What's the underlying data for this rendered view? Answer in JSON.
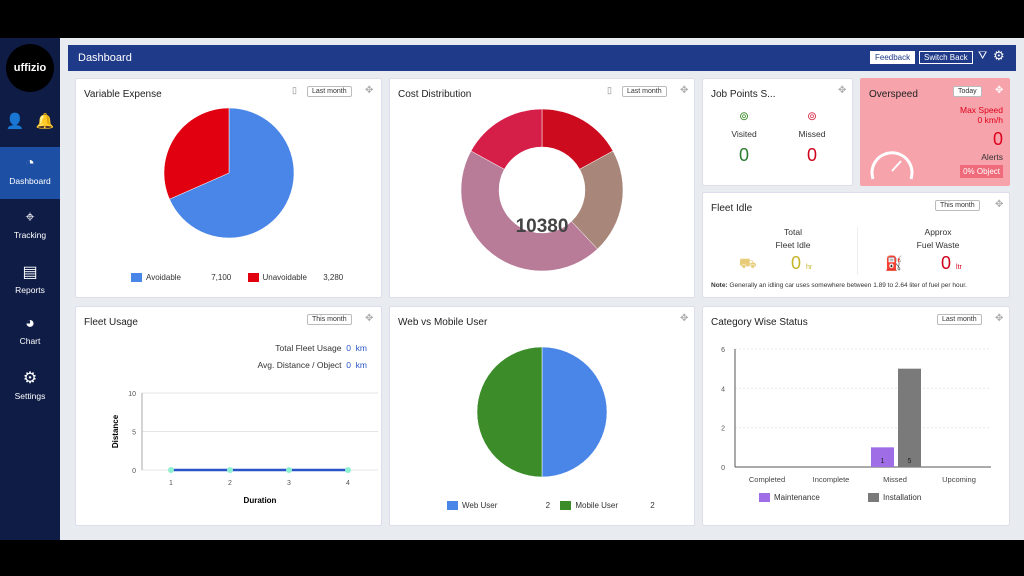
{
  "sidebar": {
    "logo": "uffizio",
    "items": [
      {
        "label": "Dashboard",
        "icon": "gauge-icon",
        "active": true
      },
      {
        "label": "Tracking",
        "icon": "location-pin-icon"
      },
      {
        "label": "Reports",
        "icon": "report-icon"
      },
      {
        "label": "Chart",
        "icon": "pie-chart-icon"
      },
      {
        "label": "Settings",
        "icon": "gear-icon"
      }
    ]
  },
  "header": {
    "title": "Dashboard",
    "feedback": "Feedback",
    "switch_back": "Switch Back"
  },
  "variable_expense": {
    "title": "Variable Expense",
    "filter": "Last month"
  },
  "cost_distribution": {
    "title": "Cost Distribution",
    "filter": "Last month",
    "total": "10380"
  },
  "job_points": {
    "title": "Job Points S...",
    "visited_label": "Visited",
    "visited": "0",
    "missed_label": "Missed",
    "missed": "0"
  },
  "overspeed": {
    "title": "Overspeed",
    "filter": "Today",
    "max_speed_label": "Max Speed",
    "max_speed": "0 km/h",
    "alerts": "0",
    "alerts_label": "Alerts",
    "object": "0% Object"
  },
  "fleet_idle": {
    "title": "Fleet Idle",
    "filter": "This month",
    "total_label1": "Total",
    "total_label2": "Fleet Idle",
    "total": "0",
    "total_unit": "hr",
    "approx_label1": "Approx",
    "approx_label2": "Fuel Waste",
    "fuel": "0",
    "fuel_unit": "ltr",
    "note_label": "Note:",
    "note": "Generally an idling car uses somewhere between 1.89 to 2.64 liter of fuel per hour."
  },
  "fleet_usage": {
    "title": "Fleet Usage",
    "filter": "This month",
    "total_label": "Total Fleet Usage",
    "total": "0",
    "total_unit": "km",
    "avg_label": "Avg. Distance / Object",
    "avg": "0",
    "avg_unit": "km"
  },
  "web_mobile": {
    "title": "Web vs Mobile User"
  },
  "category": {
    "title": "Category Wise Status",
    "filter": "Last month"
  },
  "chart_data": [
    {
      "type": "pie",
      "id": "variable_expense",
      "series": [
        {
          "name": "Avoidable",
          "value": 7100,
          "label": "7,100",
          "color": "#4a86e8"
        },
        {
          "name": "Unavoidable",
          "value": 3280,
          "label": "3,280",
          "color": "#e0000f"
        }
      ]
    },
    {
      "type": "pie",
      "id": "cost_distribution",
      "donut": true,
      "total": 10380,
      "segments": [
        {
          "share": 0.17,
          "color": "#cc0c1e"
        },
        {
          "share": 0.21,
          "color": "#a8877a"
        },
        {
          "share": 0.45,
          "color": "#b87b98"
        },
        {
          "share": 0.17,
          "color": "#d61f48"
        }
      ]
    },
    {
      "type": "line",
      "id": "fleet_usage",
      "xlabel": "Duration",
      "ylabel": "Distance",
      "x": [
        1,
        2,
        3,
        4
      ],
      "y": [
        0,
        0,
        0,
        0
      ],
      "ylim": [
        0,
        10
      ],
      "yticks": [
        "0",
        "5",
        "10"
      ],
      "color": "#2a55c9"
    },
    {
      "type": "pie",
      "id": "web_mobile",
      "series": [
        {
          "name": "Web User",
          "value": 2,
          "label": "2",
          "color": "#4a86e8"
        },
        {
          "name": "Mobile User",
          "value": 2,
          "label": "2",
          "color": "#3d8c2a"
        }
      ]
    },
    {
      "type": "bar",
      "id": "category",
      "categories": [
        "Completed",
        "Incomplete",
        "Missed",
        "Upcoming"
      ],
      "ylim": [
        0,
        6
      ],
      "yticks": [
        "0",
        "2",
        "4",
        "6"
      ],
      "series": [
        {
          "name": "Maintenance",
          "values": [
            0,
            0,
            1,
            0
          ],
          "color": "#9f6ee6"
        },
        {
          "name": "Installation",
          "values": [
            0,
            0,
            5,
            0
          ],
          "color": "#7a7a7a"
        }
      ]
    }
  ]
}
